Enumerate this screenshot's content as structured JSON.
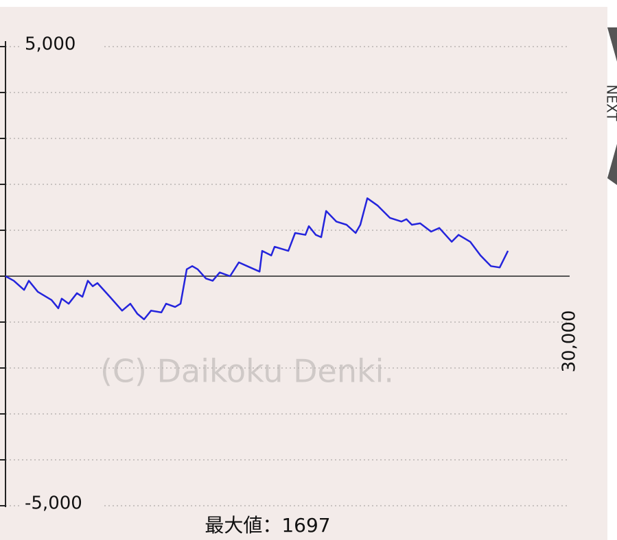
{
  "chart_data": {
    "type": "line",
    "annotation": "最大値：1697",
    "watermark": "(C) Daikoku Denki.",
    "next_button": "NEXT",
    "color": "#2424dc",
    "grid": true,
    "xlim": [
      0,
      30000
    ],
    "xticks": [
      {
        "value": 30000,
        "label": "30,000"
      }
    ],
    "ylim": [
      -5000,
      5000
    ],
    "yticks": [
      {
        "value": -5000,
        "label": "-5,000"
      },
      {
        "value": -4000,
        "label": null
      },
      {
        "value": -3000,
        "label": null
      },
      {
        "value": -2000,
        "label": null
      },
      {
        "value": -1000,
        "label": null
      },
      {
        "value": 0,
        "label": null
      },
      {
        "value": 1000,
        "label": null
      },
      {
        "value": 2000,
        "label": null
      },
      {
        "value": 3000,
        "label": null
      },
      {
        "value": 4000,
        "label": null
      },
      {
        "value": 5000,
        "label": "5,000"
      }
    ],
    "x": [
      0,
      440,
      990,
      1240,
      1720,
      2450,
      2810,
      2990,
      3360,
      3800,
      4090,
      4380,
      4640,
      4890,
      5550,
      6200,
      6640,
      7010,
      7370,
      7740,
      8290,
      8540,
      9020,
      9310,
      9640,
      9930,
      10220,
      10660,
      11020,
      11390,
      11940,
      12410,
      12850,
      13510,
      13650,
      14130,
      14310,
      15040,
      15400,
      15950,
      16130,
      16500,
      16790,
      17050,
      17590,
      18140,
      18620,
      18870,
      19240,
      19780,
      20440,
      21060,
      21320,
      21610,
      22050,
      22630,
      23070,
      23730,
      24090,
      24710,
      25260,
      25810,
      26280,
      26720
    ],
    "values": [
      0,
      -100,
      -300,
      -100,
      -340,
      -520,
      -700,
      -490,
      -600,
      -370,
      -450,
      -100,
      -220,
      -150,
      -450,
      -750,
      -600,
      -820,
      -940,
      -750,
      -790,
      -600,
      -670,
      -600,
      150,
      220,
      150,
      -50,
      -100,
      80,
      0,
      300,
      220,
      100,
      550,
      450,
      640,
      550,
      940,
      900,
      1090,
      900,
      850,
      1420,
      1190,
      1120,
      940,
      1120,
      1697,
      1540,
      1270,
      1190,
      1240,
      1120,
      1150,
      970,
      1050,
      750,
      900,
      750,
      450,
      220,
      190,
      550
    ]
  }
}
